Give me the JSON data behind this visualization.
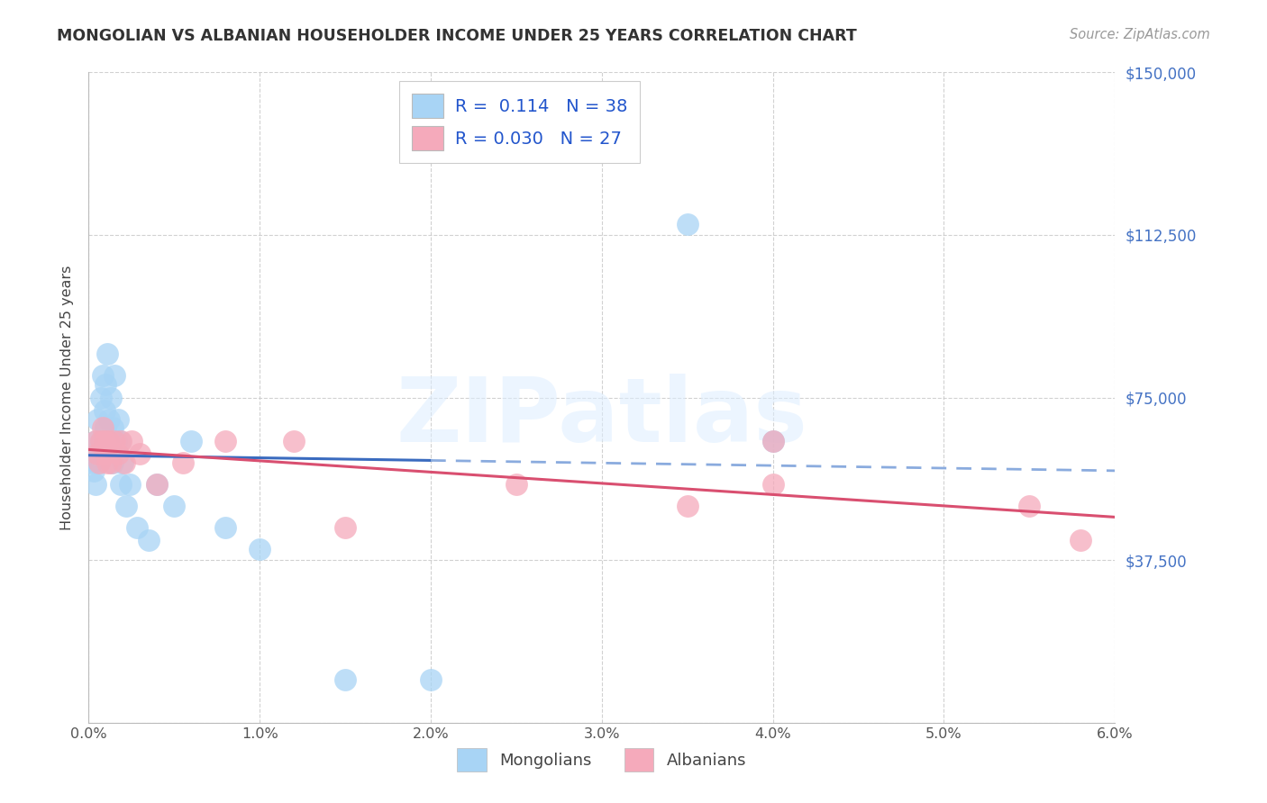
{
  "title": "MONGOLIAN VS ALBANIAN HOUSEHOLDER INCOME UNDER 25 YEARS CORRELATION CHART",
  "source": "Source: ZipAtlas.com",
  "ylabel_label": "Householder Income Under 25 years",
  "xlim": [
    0.0,
    6.0
  ],
  "ylim": [
    0,
    150000
  ],
  "mongolians_R": 0.114,
  "mongolians_N": 38,
  "albanians_R": 0.03,
  "albanians_N": 27,
  "mongolian_color": "#A8D4F5",
  "albanian_color": "#F5AABB",
  "mongolian_line_color": "#3A6BBF",
  "albanian_line_color": "#D94F70",
  "watermark": "ZIPatlas",
  "mongolians_x": [
    0.02,
    0.03,
    0.04,
    0.04,
    0.05,
    0.05,
    0.06,
    0.07,
    0.07,
    0.08,
    0.09,
    0.1,
    0.1,
    0.11,
    0.11,
    0.12,
    0.13,
    0.14,
    0.14,
    0.15,
    0.16,
    0.17,
    0.18,
    0.19,
    0.2,
    0.22,
    0.24,
    0.28,
    0.35,
    0.4,
    0.5,
    0.6,
    0.8,
    1.0,
    1.5,
    2.0,
    3.5,
    4.0
  ],
  "mongolians_y": [
    60000,
    58000,
    55000,
    65000,
    70000,
    60000,
    62000,
    75000,
    65000,
    80000,
    72000,
    68000,
    78000,
    85000,
    65000,
    70000,
    75000,
    68000,
    60000,
    80000,
    65000,
    70000,
    65000,
    55000,
    60000,
    50000,
    55000,
    45000,
    42000,
    55000,
    50000,
    65000,
    45000,
    40000,
    10000,
    10000,
    115000,
    65000
  ],
  "albanians_x": [
    0.04,
    0.05,
    0.06,
    0.07,
    0.08,
    0.09,
    0.1,
    0.11,
    0.12,
    0.13,
    0.15,
    0.17,
    0.19,
    0.21,
    0.25,
    0.3,
    0.4,
    0.55,
    0.8,
    1.2,
    1.5,
    2.5,
    3.5,
    4.0,
    4.0,
    5.5,
    5.8
  ],
  "albanians_y": [
    65000,
    62000,
    60000,
    65000,
    68000,
    65000,
    62000,
    60000,
    65000,
    60000,
    65000,
    62000,
    65000,
    60000,
    65000,
    62000,
    55000,
    60000,
    65000,
    65000,
    45000,
    55000,
    50000,
    65000,
    55000,
    50000,
    42000
  ]
}
